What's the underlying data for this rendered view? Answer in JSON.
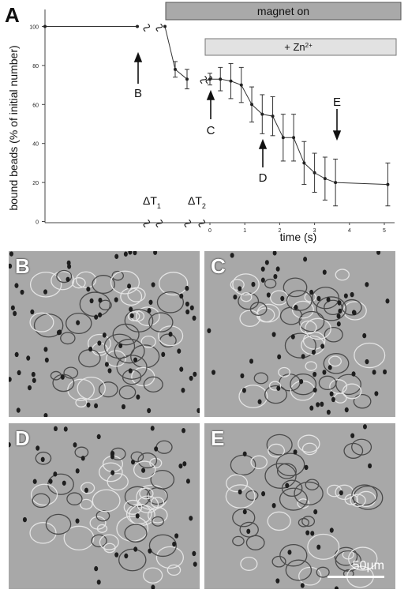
{
  "figure_label": "A",
  "chart_data": {
    "type": "line",
    "ylabel": "bound beads (% of initial number)",
    "xlabel": "time (s)",
    "ylim": [
      0,
      110
    ],
    "xlim": [
      0,
      5
    ],
    "y_ticks": [
      0,
      20,
      40,
      60,
      80,
      100
    ],
    "x_ticks": [
      0,
      1,
      2,
      3,
      4,
      5
    ],
    "y_tick_labels": [
      "0",
      "20",
      "40",
      "60",
      "80",
      "100"
    ],
    "x_tick_labels": [
      "0",
      "1",
      "2",
      "3",
      "4",
      "5"
    ],
    "break_labels": [
      {
        "main": "ΔT",
        "sub": "1"
      },
      {
        "main": "ΔT",
        "sub": "2"
      }
    ],
    "pre_points": [
      {
        "segment": "start",
        "y": 100
      },
      {
        "segment": "dt1_end",
        "y": 100
      },
      {
        "segment": "dt2_start",
        "y": 100
      },
      {
        "segment": "dt2_mid",
        "y": 78,
        "err": 4
      },
      {
        "segment": "dt2_end",
        "y": 73,
        "err": 5
      }
    ],
    "series": [
      {
        "x": [
          0.0,
          0.3,
          0.6,
          0.9,
          1.2,
          1.5,
          1.8,
          2.1,
          2.4,
          2.7,
          3.0,
          3.3,
          3.6,
          5.1
        ],
        "y": [
          73,
          73,
          72,
          70,
          60,
          55,
          54,
          43,
          43,
          30,
          25,
          22,
          20,
          19
        ],
        "err": [
          3,
          6,
          9,
          9,
          9,
          10,
          10,
          12,
          12,
          11,
          10,
          11,
          12,
          11
        ]
      }
    ],
    "bars": [
      {
        "label": "magnet on"
      },
      {
        "label_main": "+ Zn",
        "label_sup": "2+"
      }
    ],
    "annotations": [
      {
        "text": "B",
        "arrow": "up"
      },
      {
        "text": "C",
        "arrow": "up"
      },
      {
        "text": "D",
        "arrow": "up"
      },
      {
        "text": "E",
        "arrow": "down"
      }
    ]
  },
  "panels": [
    {
      "label": "B"
    },
    {
      "label": "C"
    },
    {
      "label": "D"
    },
    {
      "label": "E",
      "scale_bar": "50µm"
    }
  ]
}
